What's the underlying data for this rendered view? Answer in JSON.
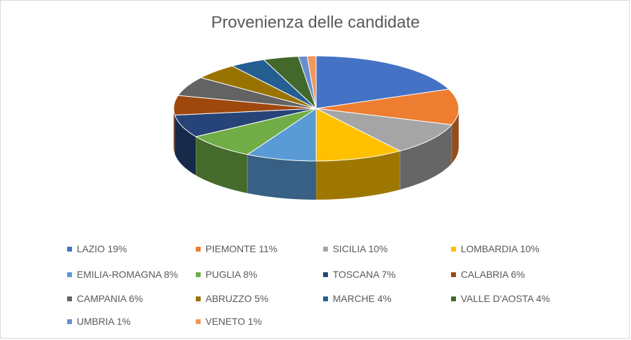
{
  "chart_data": {
    "type": "pie",
    "title": "Provenienza delle candidate",
    "categories": [
      "LAZIO",
      "PIEMONTE",
      "SICILIA",
      "LOMBARDIA",
      "EMILIA-ROMAGNA",
      "PUGLIA",
      "TOSCANA",
      "CALABRIA",
      "CAMPANIA",
      "ABRUZZO",
      "MARCHE",
      "VALLE D'AOSTA",
      "UMBRIA",
      "VENETO"
    ],
    "values": [
      19,
      11,
      10,
      10,
      8,
      8,
      7,
      6,
      6,
      5,
      4,
      4,
      1,
      1
    ],
    "legend_labels": [
      "LAZIO 19%",
      "PIEMONTE 11%",
      "SICILIA 10%",
      "LOMBARDIA 10%",
      "EMILIA-ROMAGNA 8%",
      "PUGLIA 8%",
      "TOSCANA 7%",
      "CALABRIA 6%",
      "CAMPANIA 6%",
      "ABRUZZO 5%",
      "MARCHE 4%",
      "VALLE D'AOSTA 4%",
      "UMBRIA 1%",
      "VENETO 1%"
    ],
    "colors": [
      "#4472c4",
      "#ed7d31",
      "#a5a5a5",
      "#ffc000",
      "#5b9bd5",
      "#70ad47",
      "#264478",
      "#9e480e",
      "#636363",
      "#997300",
      "#255e91",
      "#43682b",
      "#698ed0",
      "#f1975a"
    ],
    "style": "3d-pie",
    "legend_position": "bottom"
  }
}
